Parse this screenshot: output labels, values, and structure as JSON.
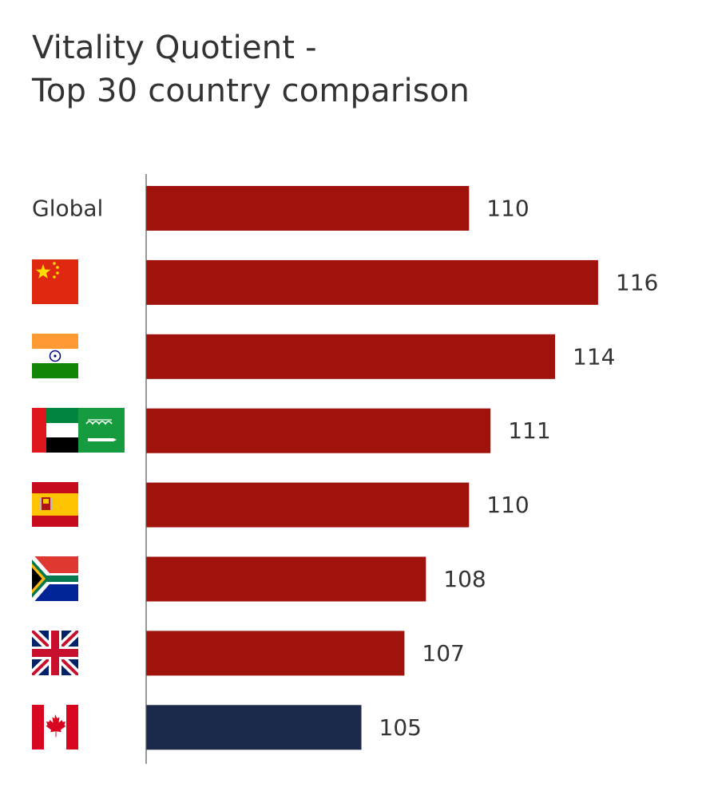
{
  "chart_data": {
    "type": "bar",
    "orientation": "horizontal",
    "title_lines": [
      "Vitality Quotient -",
      "Top 30 country comparison"
    ],
    "categories": [
      "Global",
      "China",
      "India",
      "UAE & Saudi Arabia",
      "Spain",
      "South Africa",
      "United Kingdom",
      "Canada"
    ],
    "category_labels": [
      "Global",
      "",
      "",
      "",
      "",
      "",
      "",
      ""
    ],
    "category_icons": [
      "",
      "flag-china-icon",
      "flag-india-icon",
      "flag-uae-saudi-icon",
      "flag-spain-icon",
      "flag-south-africa-icon",
      "flag-uk-icon",
      "flag-canada-icon"
    ],
    "values": [
      110,
      116,
      114,
      111,
      110,
      108,
      107,
      105
    ],
    "value_labels": [
      "110",
      "116",
      "114",
      "111",
      "110",
      "108",
      "107",
      "105"
    ],
    "bar_colors": [
      "#A0120C",
      "#A0120C",
      "#A0120C",
      "#A0120C",
      "#A0120C",
      "#A0120C",
      "#A0120C",
      "#1B2A4A"
    ],
    "xlim": [
      95,
      118
    ],
    "grid": false,
    "legend": "none"
  }
}
